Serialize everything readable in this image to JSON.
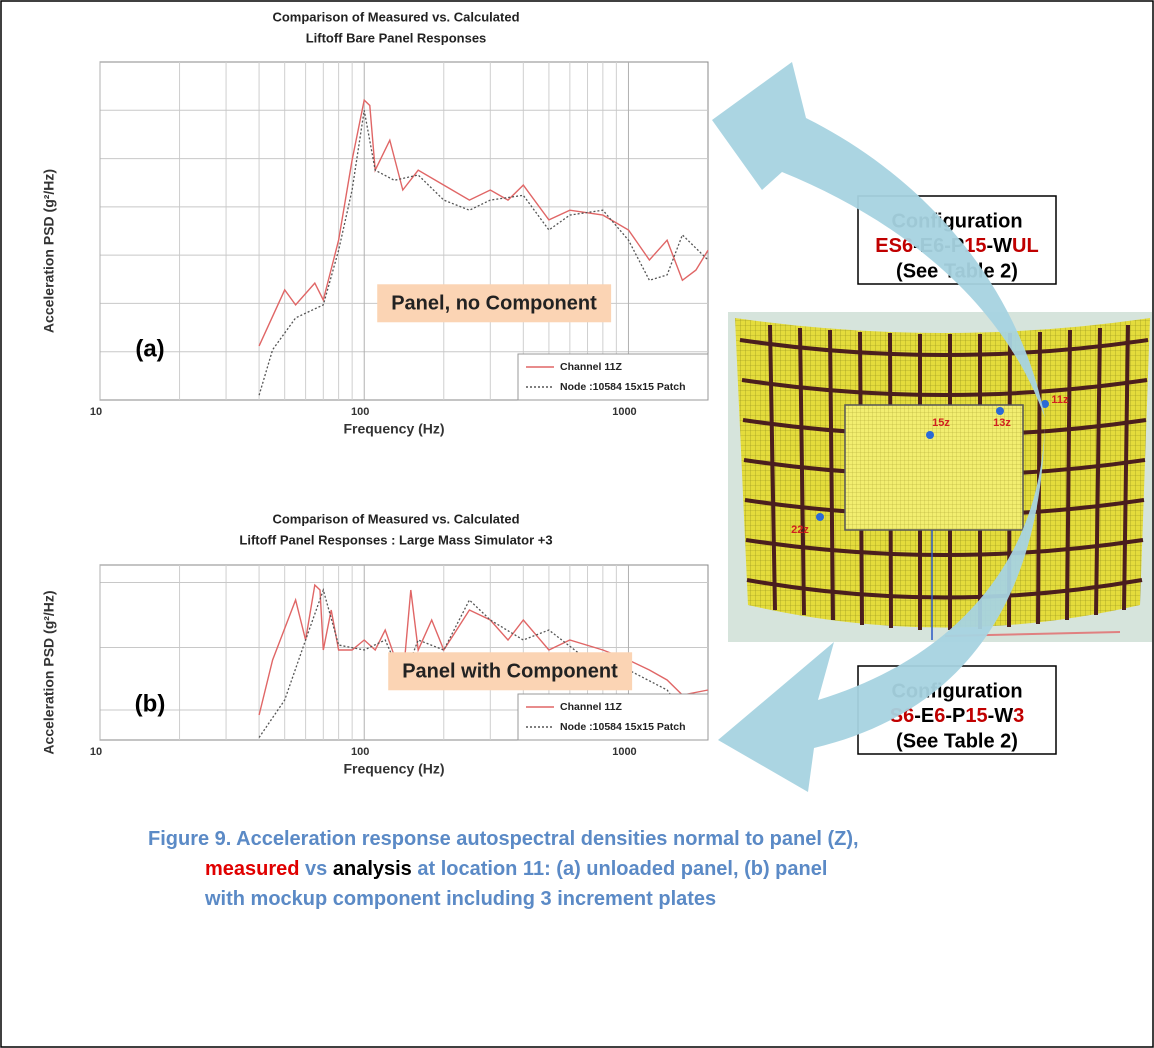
{
  "chart_data": [
    {
      "type": "line",
      "title": [
        "Comparison of Measured vs. Calculated",
        "Liftoff Bare Panel Responses"
      ],
      "xlabel": "Frequency (Hz)",
      "ylabel": "Acceleration PSD (g²/Hz)",
      "xscale": "log",
      "xlim": [
        10,
        2000
      ],
      "xticks": [
        10,
        100,
        1000
      ],
      "ylim": [
        0,
        7
      ],
      "yticks": [
        1,
        2,
        3,
        4,
        5,
        6
      ],
      "grid": true,
      "legend": "lower right",
      "series": [
        {
          "name": "Channel 11Z",
          "color": "#e06666",
          "style": "solid",
          "x": [
            40,
            50,
            55,
            65,
            70,
            80,
            90,
            100,
            105,
            110,
            125,
            140,
            160,
            200,
            250,
            300,
            350,
            400,
            500,
            600,
            800,
            1000,
            1200,
            1400,
            1600,
            1800,
            2000
          ],
          "values": [
            1.12,
            2.28,
            1.97,
            2.42,
            2.07,
            3.31,
            4.97,
            6.21,
            6.1,
            4.76,
            5.38,
            4.35,
            4.76,
            4.45,
            4.14,
            4.35,
            4.14,
            4.45,
            3.73,
            3.93,
            3.83,
            3.52,
            2.9,
            3.31,
            2.48,
            2.69,
            3.1
          ]
        },
        {
          "name": "Node :10584 15x15 Patch",
          "color": "#555555",
          "style": "dotted",
          "x": [
            40,
            45,
            55,
            70,
            80,
            90,
            100,
            110,
            130,
            160,
            200,
            250,
            300,
            400,
            500,
            600,
            800,
            1000,
            1200,
            1400,
            1600,
            2000
          ],
          "values": [
            0.1,
            1.04,
            1.7,
            1.97,
            3.1,
            4.35,
            6.0,
            4.76,
            4.55,
            4.66,
            4.14,
            3.93,
            4.14,
            4.24,
            3.52,
            3.83,
            3.93,
            3.31,
            2.48,
            2.59,
            3.42,
            2.9
          ]
        }
      ],
      "annotations": {
        "panel_label": "(a)",
        "note": "Panel, no Component"
      }
    },
    {
      "type": "line",
      "title": [
        "Comparison of Measured vs. Calculated",
        "Liftoff Panel Responses : Large Mass Simulator +3"
      ],
      "xlabel": "Frequency (Hz)",
      "ylabel": "Acceleration PSD (g²/Hz)",
      "xscale": "log",
      "xlim": [
        10,
        2000
      ],
      "xticks": [
        10,
        100,
        1000
      ],
      "ylim": [
        0,
        7
      ],
      "yticks": [
        1.2,
        3.7,
        6.3
      ],
      "grid": true,
      "legend": "lower right",
      "series": [
        {
          "name": "Channel 11Z",
          "color": "#e06666",
          "style": "solid",
          "x": [
            40,
            45,
            55,
            60,
            65,
            68,
            70,
            75,
            80,
            90,
            100,
            110,
            120,
            140,
            150,
            160,
            180,
            200,
            250,
            300,
            350,
            400,
            500,
            600,
            800,
            1000,
            1200,
            1400,
            1600,
            2000
          ],
          "values": [
            1.0,
            3.2,
            5.6,
            4.0,
            6.2,
            6.0,
            3.6,
            5.2,
            3.6,
            3.6,
            4.0,
            3.6,
            4.4,
            2.4,
            6.0,
            3.6,
            4.8,
            3.6,
            5.2,
            4.8,
            4.0,
            4.8,
            3.6,
            4.0,
            3.6,
            3.2,
            2.8,
            2.4,
            1.8,
            2.0
          ]
        },
        {
          "name": "Node :10584 15x15 Patch",
          "color": "#555555",
          "style": "dotted",
          "x": [
            40,
            50,
            60,
            70,
            80,
            100,
            120,
            140,
            160,
            200,
            250,
            300,
            400,
            500,
            700,
            1000,
            1400,
            1700,
            2000
          ],
          "values": [
            0.1,
            1.6,
            4.0,
            6.0,
            3.8,
            3.6,
            4.0,
            2.4,
            4.0,
            3.6,
            5.6,
            4.8,
            4.0,
            4.4,
            3.2,
            2.8,
            2.0,
            0.8,
            1.6
          ]
        }
      ],
      "annotations": {
        "panel_label": "(b)",
        "note": "Panel with Component"
      }
    }
  ],
  "configurations": [
    {
      "lines": [
        "Configuration",
        [
          {
            "text": "ES6",
            "color": "#c00000"
          },
          {
            "text": "-E6-P",
            "color": "#000000"
          },
          {
            "text": "15",
            "color": "#c00000"
          },
          {
            "text": "-W",
            "color": "#000000"
          },
          {
            "text": "UL",
            "color": "#c00000"
          }
        ],
        "(See Table 2)"
      ]
    },
    {
      "lines": [
        "Configuration",
        [
          {
            "text": "S6",
            "color": "#c00000"
          },
          {
            "text": "-E",
            "color": "#000000"
          },
          {
            "text": "6",
            "color": "#c00000"
          },
          {
            "text": "-P",
            "color": "#000000"
          },
          {
            "text": "15",
            "color": "#c00000"
          },
          {
            "text": "-W",
            "color": "#000000"
          },
          {
            "text": "3",
            "color": "#c00000"
          }
        ],
        "(See Table 2)"
      ]
    }
  ],
  "model": {
    "points": [
      "15z",
      "13z",
      "11z",
      "22z"
    ]
  },
  "caption": {
    "lines": [
      [
        {
          "text": "Figure 9. Acceleration response autospectral densities normal to panel (Z),",
          "color": "#5b8ac6"
        }
      ],
      [
        {
          "text": "measured",
          "color": "#e00000"
        },
        {
          "text": " vs ",
          "color": "#5b8ac6"
        },
        {
          "text": "analysis",
          "color": "#000000"
        },
        {
          "text": " at location 11: (a) unloaded panel, (b) panel",
          "color": "#5b8ac6"
        }
      ],
      [
        {
          "text": "with mockup component including 3 increment plates",
          "color": "#5b8ac6"
        }
      ]
    ]
  }
}
